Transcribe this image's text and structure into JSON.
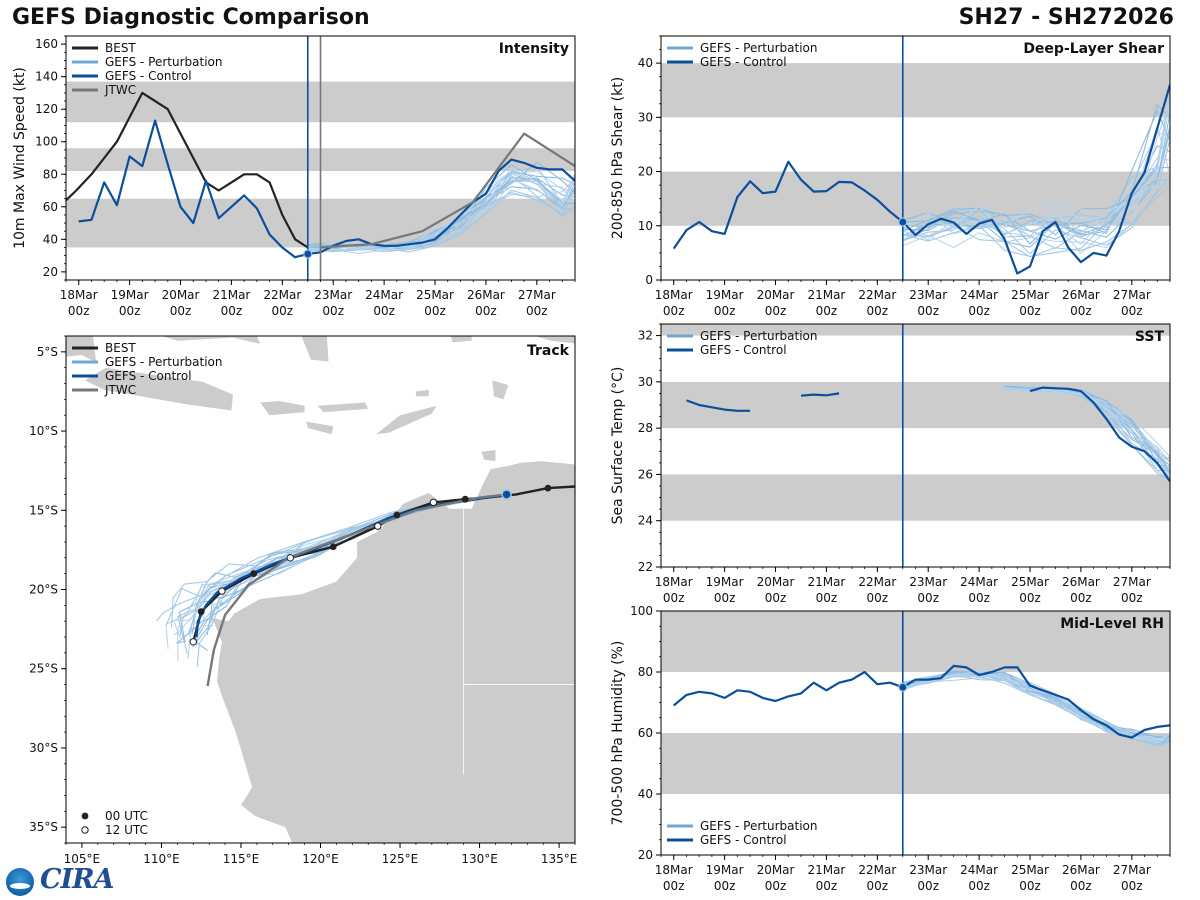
{
  "header": {
    "title": "GEFS Diagnostic Comparison",
    "storm": "SH27 - SH272026"
  },
  "colors": {
    "best": "#222222",
    "perturbation": "#6fa8d6",
    "control": "#0b4f9c",
    "jtwc": "#777777",
    "band": "#cccccc",
    "land": "#cccccc"
  },
  "legend_labels": {
    "best": "BEST",
    "perturbation": "GEFS - Perturbation",
    "control": "GEFS - Control",
    "jtwc": "JTWC",
    "utc00": "00 UTC",
    "utc12": "12 UTC"
  },
  "time_ticks": {
    "top": [
      "18Mar",
      "19Mar",
      "20Mar",
      "21Mar",
      "22Mar",
      "23Mar",
      "24Mar",
      "25Mar",
      "26Mar",
      "27Mar"
    ],
    "bottom": "00z"
  },
  "logo": {
    "text": "CIRA"
  },
  "chart_data": [
    {
      "id": "intensity",
      "type": "line",
      "title": "Intensity",
      "ylabel": "10m Max Wind Speed (kt)",
      "xlim": [
        -0.25,
        9.75
      ],
      "ylim": [
        15,
        165
      ],
      "yticks": [
        20,
        40,
        60,
        80,
        100,
        120,
        140,
        160
      ],
      "bands": [
        [
          35,
          65
        ],
        [
          82,
          96
        ],
        [
          112,
          137
        ]
      ],
      "forecast_time": 4.5,
      "jtwc_time": 4.75,
      "series": [
        {
          "name": "BEST",
          "x": [
            -0.25,
            -0.05,
            0.25,
            0.5,
            0.75,
            1.0,
            1.25,
            1.5,
            1.75,
            2.0,
            2.25,
            2.5,
            2.75,
            3.0,
            3.25,
            3.5,
            3.75,
            4.0,
            4.25,
            4.5
          ],
          "y": [
            64,
            70,
            80,
            90,
            100,
            115,
            130,
            125,
            120,
            105,
            90,
            75,
            70,
            75,
            80,
            80,
            75,
            55,
            40,
            35
          ]
        },
        {
          "name": "GEFS - Control",
          "x": [
            -0.25,
            0.0,
            0.25,
            0.5,
            0.75,
            1.0,
            1.25,
            1.5,
            1.75,
            2.0,
            2.25,
            2.5,
            2.75,
            3.0,
            3.25,
            3.5,
            3.75,
            4.0,
            4.25,
            4.5,
            4.75,
            5.0,
            5.25,
            5.5,
            5.75,
            6.0,
            6.25,
            6.5,
            6.75,
            7.0,
            7.25,
            7.5,
            7.75,
            8.0,
            8.25,
            8.5,
            8.75,
            9.0,
            9.25,
            9.5,
            9.75
          ],
          "y": [
            null,
            51,
            52,
            75,
            61,
            91,
            85,
            113,
            86,
            60,
            50,
            76,
            53,
            60,
            67,
            59,
            43,
            35,
            29,
            31,
            32,
            36,
            39,
            40,
            37,
            36,
            36,
            37,
            38,
            40,
            47,
            55,
            63,
            68,
            82,
            89,
            87,
            84,
            83,
            83,
            76
          ]
        },
        {
          "name": "JTWC",
          "x": [
            4.75,
            5.75,
            6.75,
            7.75,
            8.75,
            9.75
          ],
          "y": [
            35,
            37,
            45,
            63,
            105,
            85
          ]
        }
      ],
      "perturbation_band": {
        "x": [
          4.5,
          5.0,
          5.5,
          6.0,
          6.5,
          7.0,
          7.5,
          8.0,
          8.5,
          9.0,
          9.5,
          9.75
        ],
        "low": [
          29,
          29,
          29,
          30,
          30,
          32,
          38,
          48,
          55,
          50,
          40,
          45
        ],
        "high": [
          40,
          42,
          40,
          40,
          42,
          50,
          62,
          80,
          98,
          100,
          95,
          93
        ]
      }
    },
    {
      "id": "shear",
      "type": "line",
      "title": "Deep-Layer Shear",
      "ylabel": "200-850 hPa Shear (kt)",
      "xlim": [
        -0.25,
        9.75
      ],
      "ylim": [
        0,
        45
      ],
      "yticks": [
        0,
        10,
        20,
        30,
        40
      ],
      "bands": [
        [
          10,
          20
        ],
        [
          30,
          40
        ]
      ],
      "forecast_time": 4.5,
      "series": [
        {
          "name": "GEFS - Control",
          "x": [
            0.0,
            0.25,
            0.5,
            0.75,
            1.0,
            1.25,
            1.5,
            1.75,
            2.0,
            2.25,
            2.5,
            2.75,
            3.0,
            3.25,
            3.5,
            3.75,
            4.0,
            4.25,
            4.5,
            4.75,
            5.0,
            5.25,
            5.5,
            5.75,
            6.0,
            6.25,
            6.5,
            6.75,
            7.0,
            7.25,
            7.5,
            7.75,
            8.0,
            8.25,
            8.5,
            8.75,
            9.0,
            9.25,
            9.5,
            9.75
          ],
          "y": [
            5.8,
            9.2,
            10.7,
            9.0,
            8.5,
            15.3,
            18.2,
            16.0,
            16.3,
            21.8,
            18.5,
            16.3,
            16.4,
            18.1,
            18.0,
            16.5,
            14.8,
            12.6,
            10.7,
            8.3,
            10.3,
            11.3,
            10.6,
            8.5,
            10.4,
            11.1,
            7.5,
            1.2,
            2.5,
            9.0,
            10.7,
            6.0,
            3.3,
            5.0,
            4.5,
            9.0,
            16.0,
            19.8,
            28.0,
            36.0
          ]
        }
      ],
      "perturbation_band": {
        "x": [
          4.5,
          5.0,
          5.5,
          6.0,
          6.5,
          7.0,
          7.5,
          8.0,
          8.5,
          9.0,
          9.5,
          9.75
        ],
        "low": [
          4,
          4,
          3,
          4,
          3,
          1,
          2,
          2,
          1,
          3,
          5,
          7
        ],
        "high": [
          14,
          16,
          17,
          18,
          16,
          16,
          17,
          17,
          18,
          26,
          45,
          45
        ]
      }
    },
    {
      "id": "sst",
      "type": "line",
      "title": "SST",
      "ylabel": "Sea Surface Temp (°C)",
      "xlim": [
        -0.25,
        9.75
      ],
      "ylim": [
        22,
        32.5
      ],
      "yticks": [
        22,
        24,
        26,
        28,
        30,
        32
      ],
      "bands": [
        [
          24,
          26
        ],
        [
          28,
          30
        ],
        [
          32,
          32.5
        ]
      ],
      "forecast_time": 4.5,
      "series": [
        {
          "name": "GEFS - Control",
          "x": [
            0.25,
            0.5,
            0.75,
            1.0,
            1.25,
            1.5,
            null,
            2.5,
            2.75,
            3.0,
            3.25,
            null,
            7.0,
            7.25,
            7.5,
            7.75,
            8.0,
            8.25,
            8.5,
            8.75,
            9.0,
            9.25,
            9.5,
            9.75
          ],
          "y": [
            29.2,
            29.0,
            28.9,
            28.8,
            28.75,
            28.75,
            null,
            29.4,
            29.45,
            29.42,
            29.5,
            null,
            29.6,
            29.75,
            29.72,
            29.7,
            29.6,
            29.1,
            28.4,
            27.6,
            27.2,
            27.0,
            26.5,
            25.7
          ]
        }
      ],
      "perturbation_band": {
        "x": [
          6.5,
          7.0,
          7.5,
          8.0,
          8.5,
          9.0,
          9.5,
          9.75
        ],
        "low": [
          29.6,
          29.5,
          29.4,
          29.2,
          28.2,
          26.8,
          25.6,
          25.2
        ],
        "high": [
          29.9,
          29.9,
          29.9,
          29.9,
          29.6,
          28.9,
          27.8,
          27.3
        ]
      }
    },
    {
      "id": "rh",
      "type": "line",
      "title": "Mid-Level RH",
      "ylabel": "700-500 hPa Humidity (%)",
      "xlim": [
        -0.25,
        9.75
      ],
      "ylim": [
        20,
        100
      ],
      "yticks": [
        20,
        40,
        60,
        80,
        100
      ],
      "bands": [
        [
          40,
          60
        ],
        [
          80,
          100
        ]
      ],
      "forecast_time": 4.5,
      "series": [
        {
          "name": "GEFS - Control",
          "x": [
            0.0,
            0.25,
            0.5,
            0.75,
            1.0,
            1.25,
            1.5,
            1.75,
            2.0,
            2.25,
            2.5,
            2.75,
            3.0,
            3.25,
            3.5,
            3.75,
            4.0,
            4.25,
            4.5,
            4.75,
            5.0,
            5.25,
            5.5,
            5.75,
            6.0,
            6.25,
            6.5,
            6.75,
            7.0,
            7.25,
            7.5,
            7.75,
            8.0,
            8.25,
            8.5,
            8.75,
            9.0,
            9.25,
            9.5,
            9.75
          ],
          "y": [
            69,
            72.5,
            73.5,
            73,
            71.5,
            74,
            73.5,
            71.5,
            70.5,
            72,
            73,
            76.5,
            74,
            76.5,
            77.5,
            80,
            76,
            76.5,
            75,
            77.5,
            77.5,
            78,
            82,
            81.5,
            79,
            80,
            81.5,
            81.5,
            75.5,
            74,
            72.5,
            71,
            67.5,
            64.5,
            62.5,
            59.5,
            58.5,
            61,
            62,
            62.5
          ]
        }
      ],
      "perturbation_band": {
        "x": [
          4.5,
          5.0,
          5.5,
          6.0,
          6.5,
          7.0,
          7.5,
          8.0,
          8.5,
          9.0,
          9.5,
          9.75
        ],
        "low": [
          73,
          75,
          76,
          76,
          75,
          71,
          68,
          63,
          58,
          56,
          54,
          55
        ],
        "high": [
          78,
          80,
          82,
          82,
          82,
          78,
          74,
          70,
          66,
          63,
          61,
          62
        ]
      }
    },
    {
      "id": "track",
      "type": "scatter",
      "title": "Track",
      "xlim": [
        104,
        136
      ],
      "ylim": [
        -36,
        -4
      ],
      "xticks": [
        105,
        110,
        115,
        120,
        125,
        130,
        135
      ],
      "xtick_labels": [
        "105°E",
        "110°E",
        "115°E",
        "120°E",
        "125°E",
        "130°E",
        "135°E"
      ],
      "yticks": [
        -5,
        -10,
        -15,
        -20,
        -25,
        -30,
        -35
      ],
      "ytick_labels": [
        "5°S",
        "10°S",
        "15°S",
        "20°S",
        "25°S",
        "30°S",
        "35°S"
      ],
      "series": [
        {
          "name": "BEST",
          "lon": [
            136,
            134.3,
            132.3,
            130.5,
            129.1,
            127.1,
            124.8,
            123.6,
            120.8,
            118.1,
            115.8,
            113.8,
            112.5,
            112.0
          ],
          "lat": [
            -13.5,
            -13.6,
            -14.0,
            -14.2,
            -14.3,
            -14.5,
            -15.3,
            -16.0,
            -17.3,
            -18.0,
            -19.0,
            -20.1,
            -21.4,
            -23.3
          ]
        },
        {
          "name": "GEFS - Control",
          "lon": [
            131.7,
            129.8,
            127.0,
            124.5,
            122.0,
            119.5,
            117.0,
            115.0,
            113.5,
            112.8,
            112.3,
            112.2
          ],
          "lat": [
            -14.0,
            -14.3,
            -14.7,
            -15.4,
            -16.5,
            -17.5,
            -18.4,
            -19.3,
            -20.2,
            -21.0,
            -22.0,
            -23.0
          ]
        },
        {
          "name": "JTWC",
          "lon": [
            131.7,
            130.0,
            126.0,
            122.0,
            118.0,
            115.5,
            114.0,
            113.3,
            112.9
          ],
          "lat": [
            -14.0,
            -14.2,
            -15.0,
            -16.5,
            -18.0,
            -19.7,
            -21.6,
            -23.8,
            -26.1
          ]
        }
      ],
      "markers_00z": {
        "lon": [
          134.3,
          129.1,
          124.8,
          120.8,
          115.8,
          112.5
        ],
        "lat": [
          -13.6,
          -14.3,
          -15.3,
          -17.3,
          -19.0,
          -21.4
        ]
      },
      "markers_12z": {
        "lon": [
          127.1,
          123.6,
          118.1,
          113.8,
          112.0
        ],
        "lat": [
          -14.5,
          -16.0,
          -18.0,
          -20.1,
          -23.3
        ]
      },
      "current_position": {
        "lon": 131.7,
        "lat": -14.0
      }
    }
  ]
}
